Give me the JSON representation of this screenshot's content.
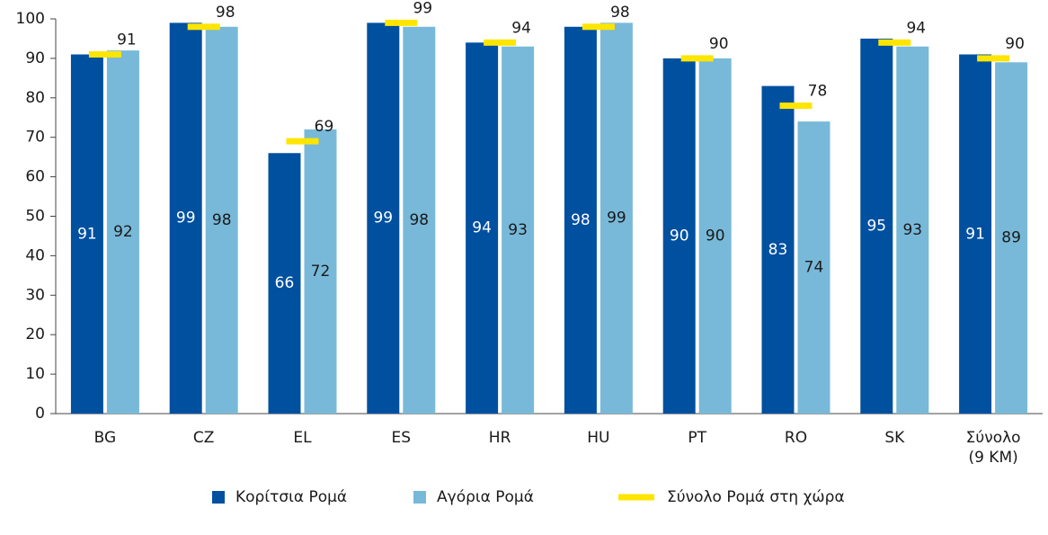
{
  "chart_data": {
    "type": "bar",
    "categories": [
      "BG",
      "CZ",
      "EL",
      "ES",
      "HR",
      "HU",
      "PT",
      "RO",
      "SK",
      "Σύνολο\n(9 ΚΜ)"
    ],
    "series": [
      {
        "name": "Κορίτσια Ρομά",
        "color": "#0050a0",
        "values": [
          91,
          99,
          66,
          99,
          94,
          98,
          90,
          83,
          95,
          91
        ]
      },
      {
        "name": "Αγόρια Ρομά",
        "color": "#78b9d9",
        "values": [
          92,
          98,
          72,
          98,
          93,
          99,
          90,
          74,
          93,
          89
        ]
      },
      {
        "name": "Σύνολο Ρομά στη χώρα",
        "color": "#ffe500",
        "type": "marker",
        "values": [
          91,
          98,
          69,
          99,
          94,
          98,
          90,
          78,
          94,
          90
        ]
      }
    ],
    "ylim": [
      0,
      100
    ],
    "yticks": [
      0,
      10,
      20,
      30,
      40,
      50,
      60,
      70,
      80,
      90,
      100
    ],
    "grid": false,
    "legend": "bottom"
  }
}
